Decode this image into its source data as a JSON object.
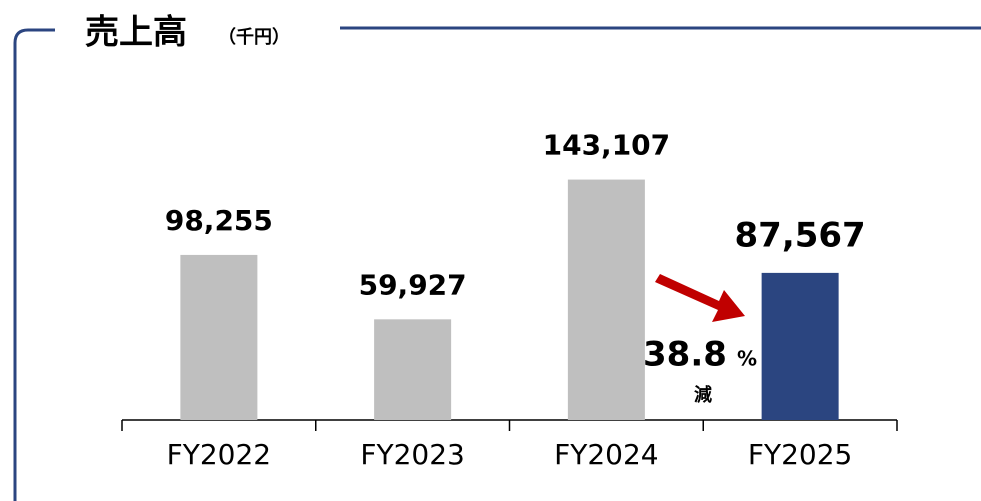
{
  "chart_data": {
    "type": "bar",
    "title": "売上高",
    "subtitle": "（千円）",
    "categories": [
      "FY2022",
      "FY2023",
      "FY2024",
      "FY2025"
    ],
    "values": [
      98255,
      59927,
      143107,
      87567
    ],
    "value_labels": [
      "98,255",
      "59,927",
      "143,107",
      "87,567"
    ],
    "colors": [
      "#bfbfbf",
      "#bfbfbf",
      "#bfbfbf",
      "#2b4580"
    ],
    "ylim": [
      0,
      150000
    ],
    "annotation": {
      "change": "38.8",
      "unit": "%",
      "text": "減"
    }
  }
}
